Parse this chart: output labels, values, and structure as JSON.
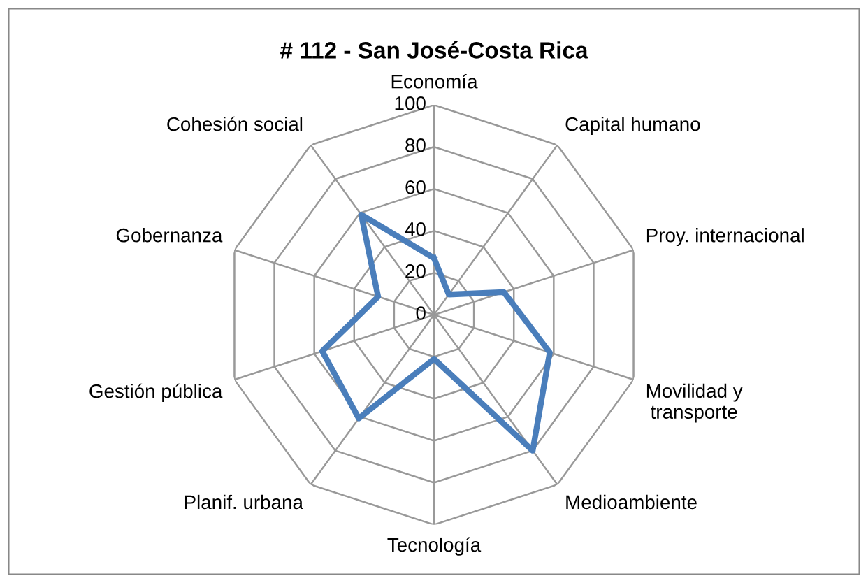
{
  "chart_data": {
    "type": "radar",
    "title": "# 112 - San José-Costa Rica",
    "categories": [
      "Economía",
      "Capital humano",
      "Proy. internacional",
      "Movilidad y\ntransporte",
      "Medioambiente",
      "Tecnología",
      "Planif. urbana",
      "Gestión pública",
      "Gobernanza",
      "Cohesión social"
    ],
    "series": [
      {
        "color": "#4a7ebb",
        "values": [
          27,
          12,
          35,
          58,
          80,
          21,
          61,
          56,
          28,
          59
        ]
      }
    ],
    "ylim": [
      0,
      100
    ],
    "yticks": [
      0,
      20,
      40,
      60,
      80,
      100
    ],
    "grid": true,
    "marker": "none",
    "line_style": "solid"
  }
}
